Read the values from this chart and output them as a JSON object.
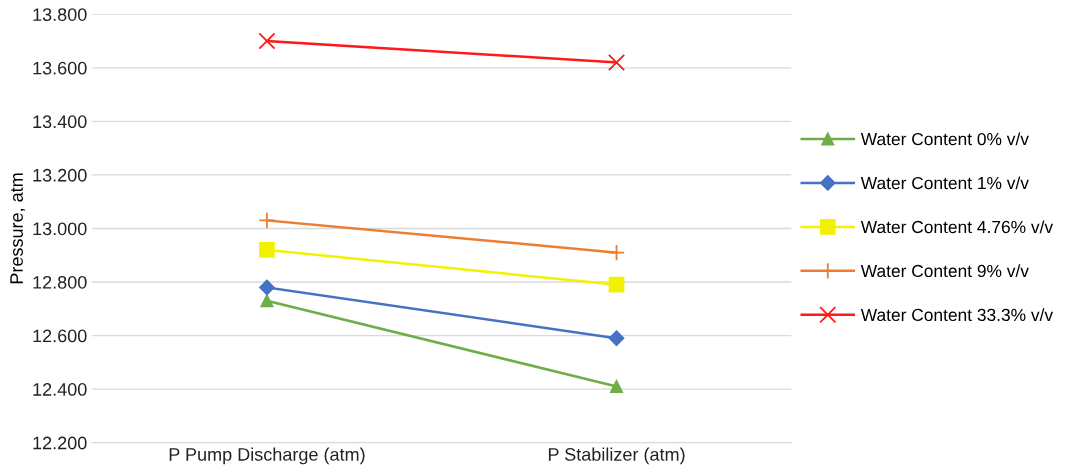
{
  "chart_data": {
    "type": "line",
    "ylabel": "Pressure, atm",
    "categories": [
      "P Pump Discharge (atm)",
      "P Stabilizer (atm)"
    ],
    "series": [
      {
        "name": "Water Content 0% v/v",
        "color": "#70ad47",
        "marker": "triangle",
        "values": [
          12.73,
          12.41
        ]
      },
      {
        "name": "Water Content 1% v/v",
        "color": "#4472c4",
        "marker": "diamond",
        "values": [
          12.78,
          12.59
        ]
      },
      {
        "name": "Water Content 4.76% v/v",
        "color": "#f2f200",
        "marker": "square",
        "values": [
          12.92,
          12.79
        ]
      },
      {
        "name": "Water Content 9% v/v",
        "color": "#ed7d31",
        "marker": "plus",
        "values": [
          13.03,
          12.91
        ]
      },
      {
        "name": "Water Content 33.3% v/v",
        "color": "#ff1a1a",
        "marker": "cross",
        "values": [
          13.7,
          13.62
        ]
      }
    ],
    "ylim": [
      12.2,
      13.8
    ],
    "yticks": [
      {
        "value": 12.2,
        "label": "12.200"
      },
      {
        "value": 12.4,
        "label": "12.400"
      },
      {
        "value": 12.6,
        "label": "12.600"
      },
      {
        "value": 12.8,
        "label": "12.800"
      },
      {
        "value": 13.0,
        "label": "13.000"
      },
      {
        "value": 13.2,
        "label": "13.200"
      },
      {
        "value": 13.4,
        "label": "13.400"
      },
      {
        "value": 13.6,
        "label": "13.600"
      },
      {
        "value": 13.8,
        "label": "13.800"
      }
    ],
    "grid": "y",
    "legend": "right",
    "line_style": "solid"
  }
}
